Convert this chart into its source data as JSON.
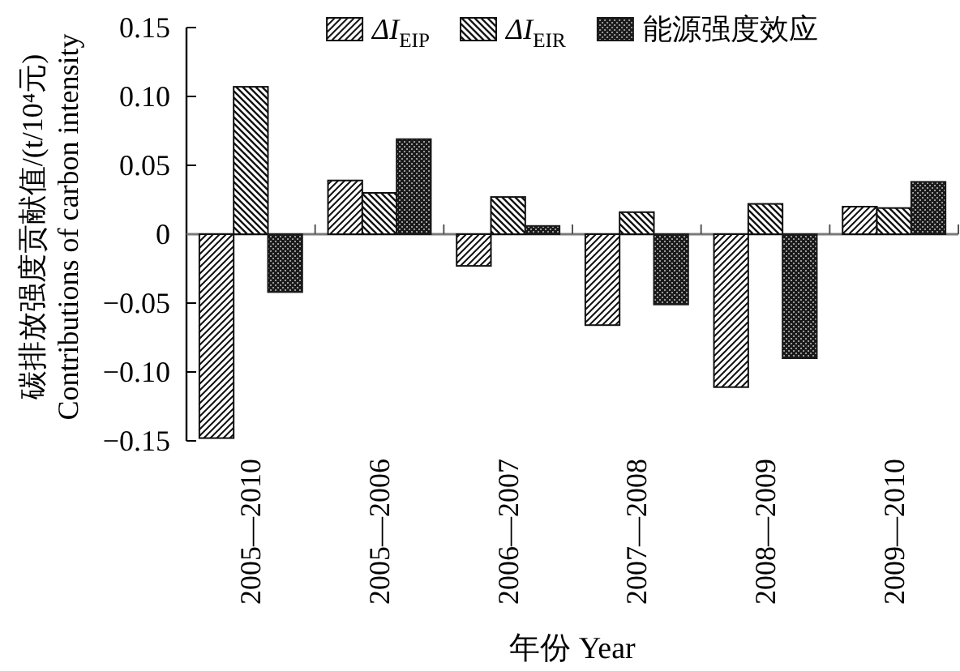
{
  "chart_data": {
    "type": "bar",
    "categories": [
      "2005—2010",
      "2005—2006",
      "2006—2007",
      "2007—2008",
      "2008—2009",
      "2009—2010"
    ],
    "series": [
      {
        "name": "ΔI$_{EIP}$",
        "color": "#111111",
        "values": [
          -0.148,
          0.039,
          -0.023,
          -0.066,
          -0.111,
          0.02
        ]
      },
      {
        "name": "ΔI$_{EIR}$",
        "color": "#111111",
        "values": [
          0.107,
          0.03,
          0.027,
          0.016,
          0.022,
          0.019
        ]
      },
      {
        "name": "能源强度效应",
        "color": "#1a1a1a",
        "values": [
          -0.042,
          0.069,
          0.006,
          -0.051,
          -0.09,
          0.038
        ]
      }
    ],
    "ylabel": "碳排放强度贡献值/(t/10⁴元)\nContributions of carbon intensity",
    "xlabel": "年份 Year",
    "ylim": [
      -0.15,
      0.15
    ],
    "yticks": [
      {
        "value": -0.15,
        "label": "−0.15"
      },
      {
        "value": -0.1,
        "label": "−0.10"
      },
      {
        "value": -0.05,
        "label": "−0.05"
      },
      0,
      0.05,
      {
        "value": 0.1,
        "label": "0.10"
      },
      0.15
    ],
    "legend": "top"
  }
}
